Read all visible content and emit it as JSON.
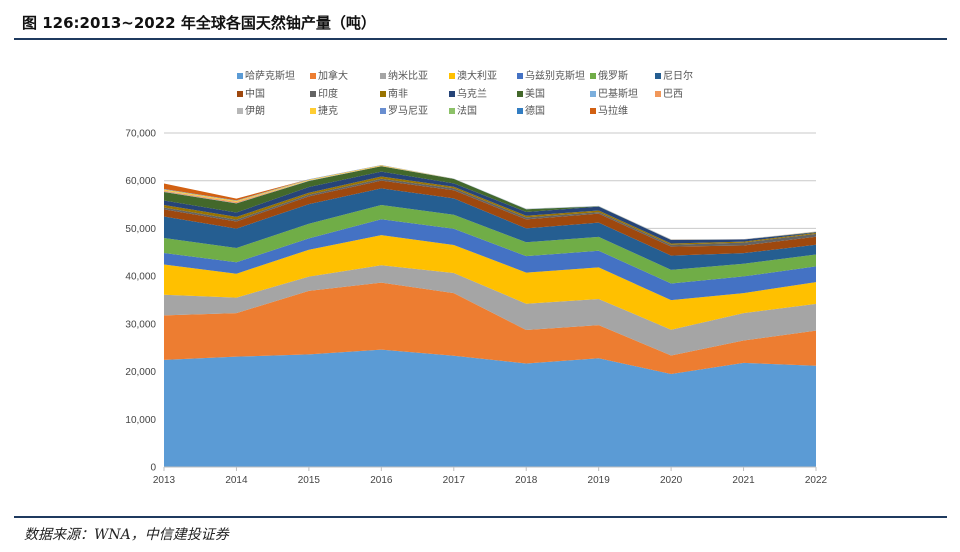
{
  "figure": {
    "title": "图 126:2013~2022 年全球各国天然铀产量（吨）",
    "source": "数据来源：WNA，中信建投证券"
  },
  "chart_data": {
    "type": "area",
    "stacked": true,
    "title": "",
    "xlabel": "",
    "ylabel": "",
    "x": [
      "2013",
      "2014",
      "2015",
      "2016",
      "2017",
      "2018",
      "2019",
      "2020",
      "2021",
      "2022"
    ],
    "ylim": [
      0,
      70000
    ],
    "yticks": [
      0,
      10000,
      20000,
      30000,
      40000,
      50000,
      60000,
      70000
    ],
    "ytick_labels": [
      "0",
      "10,000",
      "20,000",
      "30,000",
      "40,000",
      "50,000",
      "60,000",
      "70,000"
    ],
    "grid": true,
    "legend_position": "top",
    "series": [
      {
        "name": "哈萨克斯坦",
        "color": "#5b9bd5",
        "values": [
          22450,
          23130,
          23600,
          24590,
          23320,
          21700,
          22800,
          19480,
          21820,
          21230
        ]
      },
      {
        "name": "加拿大",
        "color": "#ed7d31",
        "values": [
          9330,
          9130,
          13300,
          14040,
          13120,
          7000,
          6940,
          3880,
          4690,
          7350
        ]
      },
      {
        "name": "纳米比亚",
        "color": "#a5a5a5",
        "values": [
          4320,
          3250,
          2990,
          3650,
          4220,
          5520,
          5480,
          5410,
          5750,
          5610
        ]
      },
      {
        "name": "澳大利亚",
        "color": "#ffc000",
        "values": [
          6350,
          5000,
          5650,
          6310,
          5880,
          6520,
          6610,
          6200,
          4190,
          4550
        ]
      },
      {
        "name": "乌兹别克斯坦",
        "color": "#4472c4",
        "values": [
          2400,
          2400,
          2385,
          3325,
          3400,
          3450,
          3500,
          3500,
          3500,
          3300
        ]
      },
      {
        "name": "俄罗斯",
        "color": "#70ad47",
        "values": [
          3135,
          2990,
          3055,
          3004,
          2917,
          2904,
          2911,
          2846,
          2635,
          2508
        ]
      },
      {
        "name": "尼日尔",
        "color": "#255e91",
        "values": [
          4518,
          4057,
          4116,
          3479,
          3449,
          2911,
          2983,
          2991,
          2248,
          2020
        ]
      },
      {
        "name": "中国",
        "color": "#9e480e",
        "values": [
          1500,
          1500,
          1616,
          1616,
          1692,
          1885,
          1885,
          1885,
          1600,
          1700
        ]
      },
      {
        "name": "印度",
        "color": "#636363",
        "values": [
          385,
          385,
          385,
          385,
          421,
          423,
          308,
          400,
          600,
          600
        ]
      },
      {
        "name": "南非",
        "color": "#997300",
        "values": [
          531,
          573,
          393,
          490,
          308,
          346,
          346,
          250,
          192,
          200
        ]
      },
      {
        "name": "乌克兰",
        "color": "#264478",
        "values": [
          922,
          926,
          1200,
          1005,
          707,
          790,
          801,
          744,
          455,
          100
        ]
      },
      {
        "name": "美国",
        "color": "#43682b",
        "values": [
          1792,
          1919,
          1256,
          1125,
          940,
          582,
          58,
          6,
          8,
          75
        ]
      },
      {
        "name": "巴基斯坦",
        "color": "#7cafdd",
        "values": [
          41,
          45,
          45,
          45,
          45,
          45,
          45,
          45,
          45,
          45
        ]
      },
      {
        "name": "巴西",
        "color": "#f1975a",
        "values": [
          192,
          231,
          40,
          44,
          0,
          0,
          0,
          15,
          16,
          43
        ]
      },
      {
        "name": "伊朗",
        "color": "#b7b7b7",
        "values": [
          83,
          38,
          40,
          0,
          40,
          71,
          71,
          71,
          21,
          20
        ]
      },
      {
        "name": "捷克",
        "color": "#ffcd33",
        "values": [
          215,
          193,
          155,
          138,
          0,
          0,
          0,
          0,
          0,
          0
        ]
      },
      {
        "name": "罗马尼亚",
        "color": "#698ed0",
        "values": [
          77,
          77,
          77,
          50,
          0,
          0,
          0,
          0,
          0,
          0
        ]
      },
      {
        "name": "法国",
        "color": "#8cc168",
        "values": [
          5,
          3,
          2,
          0,
          0,
          0,
          0,
          0,
          0,
          0
        ]
      },
      {
        "name": "德国",
        "color": "#327dc2",
        "values": [
          27,
          33,
          0,
          0,
          0,
          0,
          0,
          0,
          0,
          0
        ]
      },
      {
        "name": "马拉维",
        "color": "#d26012",
        "values": [
          1132,
          369,
          0,
          0,
          0,
          0,
          0,
          0,
          0,
          0
        ]
      }
    ]
  }
}
